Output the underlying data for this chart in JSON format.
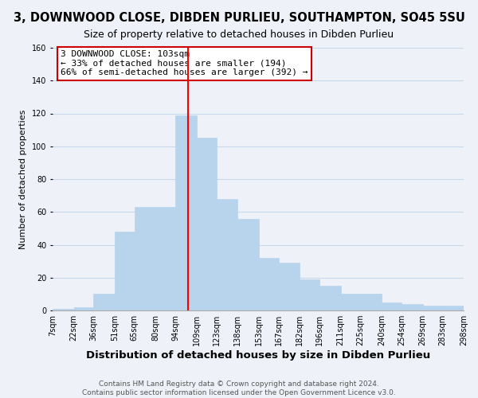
{
  "title": "3, DOWNWOOD CLOSE, DIBDEN PURLIEU, SOUTHAMPTON, SO45 5SU",
  "subtitle": "Size of property relative to detached houses in Dibden Purlieu",
  "xlabel": "Distribution of detached houses by size in Dibden Purlieu",
  "ylabel": "Number of detached properties",
  "bar_color": "#b8d4ec",
  "bar_edgecolor": "#b8d4ec",
  "grid_color": "#c8d8ec",
  "background_color": "#eef2f8",
  "vline_x": 103,
  "vline_color": "red",
  "annotation_text_line1": "3 DOWNWOOD CLOSE: 103sqm",
  "annotation_text_line2": "← 33% of detached houses are smaller (194)",
  "annotation_text_line3": "66% of semi-detached houses are larger (392) →",
  "annotation_box_color": "white",
  "annotation_box_edgecolor": "#cc0000",
  "bins": [
    7,
    22,
    36,
    51,
    65,
    80,
    94,
    109,
    123,
    138,
    153,
    167,
    182,
    196,
    211,
    225,
    240,
    254,
    269,
    283,
    298
  ],
  "counts": [
    1,
    2,
    10,
    48,
    63,
    63,
    119,
    105,
    68,
    56,
    32,
    29,
    19,
    15,
    10,
    10,
    5,
    4,
    3,
    3
  ],
  "ylim": [
    0,
    160
  ],
  "yticks": [
    0,
    20,
    40,
    60,
    80,
    100,
    120,
    140,
    160
  ],
  "footer_line1": "Contains HM Land Registry data © Crown copyright and database right 2024.",
  "footer_line2": "Contains public sector information licensed under the Open Government Licence v3.0.",
  "title_fontsize": 10.5,
  "subtitle_fontsize": 9,
  "xlabel_fontsize": 9.5,
  "ylabel_fontsize": 8,
  "tick_fontsize": 7,
  "footer_fontsize": 6.5,
  "annotation_fontsize": 8
}
